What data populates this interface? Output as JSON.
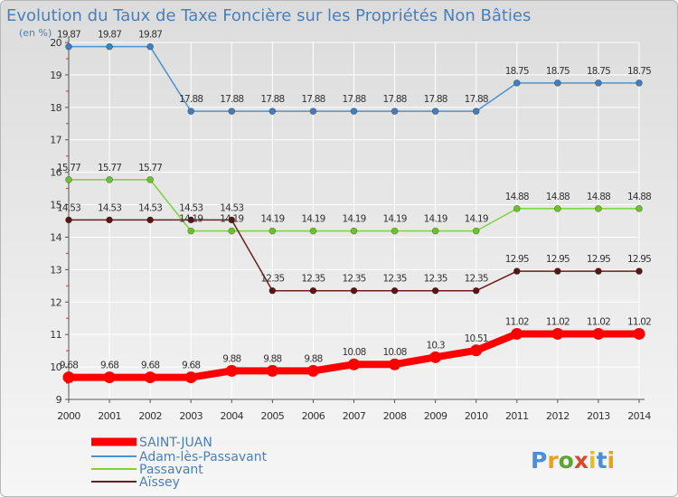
{
  "title": "Evolution du Taux de Taxe Foncière sur les Propriétés Non Bâties",
  "unit": "(en %)",
  "colors": {
    "series": [
      "#ff0000",
      "#4f93cb",
      "#7fd13f",
      "#6b1e1e"
    ],
    "points": [
      "#ff0000",
      "#3f7fc1",
      "#6cc22e",
      "#5a1515"
    ],
    "axis": "#555555",
    "grid": "#ffffff",
    "text": "#333333",
    "title": "#4a7fb9"
  },
  "logo": {
    "letters": [
      "P",
      "r",
      "o",
      "x",
      "i",
      "t",
      "i"
    ],
    "colors": [
      "#4b8dd6",
      "#e8a21a",
      "#5aa72b",
      "#d84a2b",
      "#e3c01e",
      "#4b8dd6",
      "#e8a21a"
    ]
  },
  "chart_data": {
    "type": "line",
    "title": "Evolution du Taux de Taxe Foncière sur les Propriétés Non Bâties",
    "ylabel": "(en %)",
    "xlabel": "",
    "x": [
      "2000",
      "2001",
      "2002",
      "2003",
      "2004",
      "2005",
      "2006",
      "2007",
      "2008",
      "2009",
      "2010",
      "2011",
      "2012",
      "2013",
      "2014"
    ],
    "ylim": [
      9,
      20
    ],
    "yticks": [
      "9",
      "10",
      "11",
      "12",
      "13",
      "14",
      "15",
      "16",
      "17",
      "18",
      "19",
      "20"
    ],
    "legend_position": "bottom-left",
    "series": [
      {
        "name": "SAINT-JUAN",
        "values": [
          9.68,
          9.68,
          9.68,
          9.68,
          9.88,
          9.88,
          9.88,
          10.08,
          10.08,
          10.3,
          10.51,
          11.02,
          11.02,
          11.02,
          11.02
        ],
        "labels": [
          "9.68",
          "9.68",
          "9.68",
          "9.68",
          "9.88",
          "9.88",
          "9.88",
          "10.08",
          "10.08",
          "10.3",
          "10.51",
          "11.02",
          "11.02",
          "11.02",
          "11.02"
        ]
      },
      {
        "name": "Adam-lès-Passavant",
        "values": [
          19.87,
          19.87,
          19.87,
          17.88,
          17.88,
          17.88,
          17.88,
          17.88,
          17.88,
          17.88,
          17.88,
          18.75,
          18.75,
          18.75,
          18.75
        ],
        "labels": [
          "19.87",
          "19.87",
          "19.87",
          "17.88",
          "17.88",
          "17.88",
          "17.88",
          "17.88",
          "17.88",
          "17.88",
          "17.88",
          "18.75",
          "18.75",
          "18.75",
          "18.75"
        ]
      },
      {
        "name": "Passavant",
        "values": [
          15.77,
          15.77,
          15.77,
          14.19,
          14.19,
          14.19,
          14.19,
          14.19,
          14.19,
          14.19,
          14.19,
          14.88,
          14.88,
          14.88,
          14.88
        ],
        "labels": [
          "15.77",
          "15.77",
          "15.77",
          "14.19",
          "14.19",
          "14.19",
          "14.19",
          "14.19",
          "14.19",
          "14.19",
          "14.19",
          "14.88",
          "14.88",
          "14.88",
          "14.88"
        ]
      },
      {
        "name": "Aïssey",
        "values": [
          14.53,
          14.53,
          14.53,
          14.53,
          14.53,
          12.35,
          12.35,
          12.35,
          12.35,
          12.35,
          12.35,
          12.95,
          12.95,
          12.95,
          12.95
        ],
        "labels": [
          "14.53",
          "14.53",
          "14.53",
          "14.53",
          "14.53",
          "12.35",
          "12.35",
          "12.35",
          "12.35",
          "12.35",
          "12.35",
          "12.95",
          "12.95",
          "12.95",
          "12.95"
        ]
      }
    ]
  }
}
